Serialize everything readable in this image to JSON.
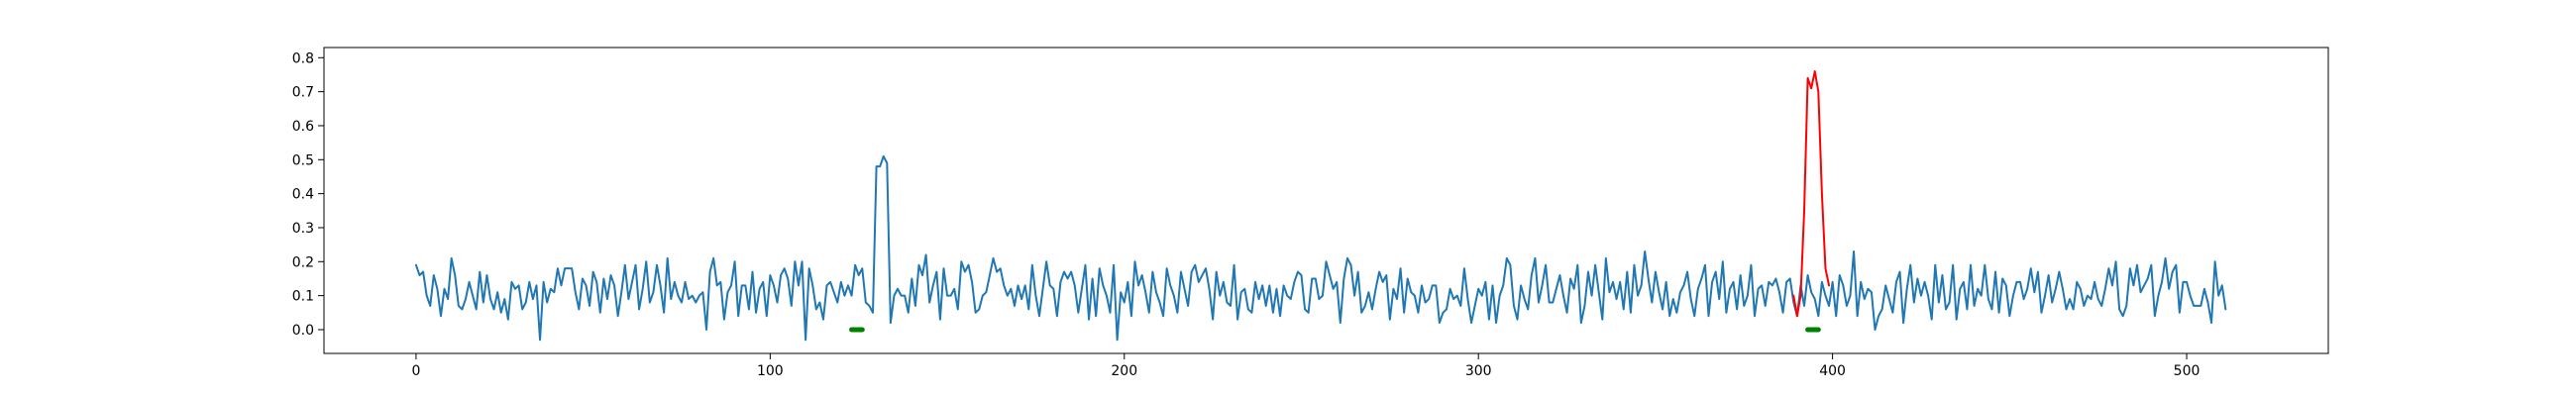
{
  "chart_data": {
    "type": "line",
    "title": "",
    "xlabel": "",
    "ylabel": "",
    "xlim": [
      -26,
      540
    ],
    "ylim": [
      -0.07,
      0.83
    ],
    "xticks": [
      0,
      100,
      200,
      300,
      400,
      500
    ],
    "xtick_labels": [
      "0",
      "100",
      "200",
      "300",
      "400",
      "500"
    ],
    "yticks": [
      0.0,
      0.1,
      0.2,
      0.3,
      0.4,
      0.5,
      0.6,
      0.7,
      0.8
    ],
    "ytick_labels": [
      "0.0",
      "0.1",
      "0.2",
      "0.3",
      "0.4",
      "0.5",
      "0.6",
      "0.7",
      "0.8"
    ],
    "grid": false,
    "legend": "none",
    "series": [
      {
        "role": "signal",
        "color": "#1f77b4",
        "x_start": 0,
        "values": [
          0.19,
          0.16,
          0.17,
          0.1,
          0.07,
          0.16,
          0.12,
          0.04,
          0.12,
          0.09,
          0.21,
          0.16,
          0.07,
          0.06,
          0.09,
          0.14,
          0.1,
          0.06,
          0.17,
          0.08,
          0.16,
          0.09,
          0.06,
          0.11,
          0.05,
          0.09,
          0.03,
          0.14,
          0.12,
          0.13,
          0.06,
          0.08,
          0.14,
          0.09,
          0.13,
          -0.03,
          0.14,
          0.08,
          0.12,
          0.11,
          0.18,
          0.13,
          0.18,
          0.18,
          0.18,
          0.11,
          0.06,
          0.15,
          0.13,
          0.07,
          0.17,
          0.14,
          0.05,
          0.15,
          0.09,
          0.16,
          0.13,
          0.04,
          0.11,
          0.19,
          0.09,
          0.14,
          0.19,
          0.06,
          0.12,
          0.2,
          0.08,
          0.11,
          0.19,
          0.13,
          0.05,
          0.21,
          0.09,
          0.14,
          0.1,
          0.08,
          0.14,
          0.09,
          0.1,
          0.08,
          0.1,
          0.11,
          0.0,
          0.17,
          0.21,
          0.13,
          0.14,
          0.03,
          0.11,
          0.13,
          0.2,
          0.04,
          0.13,
          0.13,
          0.06,
          0.17,
          0.05,
          0.12,
          0.14,
          0.04,
          0.16,
          0.13,
          0.08,
          0.16,
          0.18,
          0.15,
          0.07,
          0.2,
          0.13,
          0.2,
          -0.03,
          0.18,
          0.13,
          0.06,
          0.08,
          0.03,
          0.13,
          0.14,
          0.11,
          0.08,
          0.14,
          0.1,
          0.13,
          0.1,
          0.19,
          0.16,
          0.18,
          0.08,
          0.07,
          0.05,
          0.48,
          0.48,
          0.51,
          0.49,
          0.02,
          0.1,
          0.12,
          0.1,
          0.1,
          0.05,
          0.15,
          0.07,
          0.19,
          0.16,
          0.22,
          0.08,
          0.13,
          0.17,
          0.03,
          0.18,
          0.1,
          0.1,
          0.12,
          0.06,
          0.2,
          0.17,
          0.19,
          0.14,
          0.05,
          0.06,
          0.1,
          0.11,
          0.16,
          0.21,
          0.17,
          0.18,
          0.13,
          0.1,
          0.12,
          0.07,
          0.13,
          0.09,
          0.13,
          0.06,
          0.19,
          0.1,
          0.04,
          0.12,
          0.2,
          0.13,
          0.12,
          0.04,
          0.14,
          0.17,
          0.15,
          0.17,
          0.13,
          0.05,
          0.12,
          0.19,
          0.03,
          0.15,
          0.04,
          0.18,
          0.13,
          0.1,
          0.05,
          0.19,
          -0.03,
          0.11,
          0.08,
          0.14,
          0.04,
          0.2,
          0.13,
          0.16,
          0.11,
          0.05,
          0.17,
          0.11,
          0.08,
          0.04,
          0.18,
          0.13,
          0.1,
          0.05,
          0.17,
          0.12,
          0.07,
          0.17,
          0.19,
          0.14,
          0.16,
          0.18,
          0.12,
          0.03,
          0.17,
          0.1,
          0.14,
          0.08,
          0.07,
          0.19,
          0.03,
          0.11,
          0.12,
          0.06,
          0.05,
          0.14,
          0.09,
          0.13,
          0.07,
          0.13,
          0.05,
          0.12,
          0.04,
          0.13,
          0.1,
          0.09,
          0.14,
          0.17,
          0.16,
          0.06,
          0.05,
          0.15,
          0.15,
          0.09,
          0.1,
          0.2,
          0.16,
          0.12,
          0.14,
          0.02,
          0.15,
          0.21,
          0.19,
          0.1,
          0.17,
          0.05,
          0.07,
          0.11,
          0.06,
          0.12,
          0.17,
          0.14,
          0.16,
          0.03,
          0.12,
          0.09,
          0.18,
          0.05,
          0.15,
          0.11,
          0.1,
          0.05,
          0.13,
          0.08,
          0.09,
          0.13,
          0.13,
          0.02,
          0.05,
          0.06,
          0.12,
          0.09,
          0.1,
          0.07,
          0.18,
          0.09,
          0.02,
          0.07,
          0.12,
          0.1,
          0.14,
          0.03,
          0.13,
          0.02,
          0.1,
          0.13,
          0.21,
          0.19,
          0.07,
          0.03,
          0.13,
          0.09,
          0.06,
          0.16,
          0.21,
          0.08,
          0.13,
          0.19,
          0.08,
          0.08,
          0.12,
          0.16,
          0.1,
          0.05,
          0.15,
          0.12,
          0.19,
          0.02,
          0.07,
          0.17,
          0.1,
          0.19,
          0.11,
          0.03,
          0.21,
          0.11,
          0.14,
          0.09,
          0.14,
          0.06,
          0.17,
          0.05,
          0.19,
          0.1,
          0.13,
          0.23,
          0.15,
          0.08,
          0.17,
          0.11,
          0.06,
          0.14,
          0.04,
          0.09,
          0.05,
          0.11,
          0.13,
          0.17,
          0.09,
          0.04,
          0.12,
          0.15,
          0.19,
          0.04,
          0.14,
          0.17,
          0.09,
          0.2,
          0.05,
          0.12,
          0.14,
          0.06,
          0.16,
          0.07,
          0.1,
          0.19,
          0.04,
          0.12,
          0.13,
          0.07,
          0.14,
          0.13,
          0.15,
          0.11,
          0.05,
          0.14,
          0.15,
          0.08,
          0.04,
          0.13,
          0.07,
          0.16,
          0.11,
          0.09,
          0.04,
          0.14,
          0.1,
          0.07,
          0.14,
          0.04,
          0.16,
          0.13,
          0.07,
          0.1,
          0.23,
          0.04,
          0.14,
          0.09,
          0.12,
          0.11,
          0.0,
          0.04,
          0.06,
          0.13,
          0.09,
          0.05,
          0.14,
          0.17,
          0.02,
          0.12,
          0.19,
          0.08,
          0.15,
          0.1,
          0.14,
          0.1,
          0.03,
          0.19,
          0.08,
          0.16,
          0.06,
          0.08,
          0.19,
          0.03,
          0.12,
          0.14,
          0.06,
          0.19,
          0.07,
          0.12,
          0.1,
          0.19,
          0.09,
          0.06,
          0.17,
          0.05,
          0.15,
          0.13,
          0.04,
          0.1,
          0.14,
          0.14,
          0.09,
          0.12,
          0.18,
          0.11,
          0.17,
          0.05,
          0.1,
          0.16,
          0.08,
          0.12,
          0.17,
          0.12,
          0.06,
          0.09,
          0.06,
          0.14,
          0.12,
          0.07,
          0.1,
          0.09,
          0.14,
          0.09,
          0.07,
          0.12,
          0.18,
          0.13,
          0.2,
          0.06,
          0.04,
          0.07,
          0.18,
          0.13,
          0.19,
          0.11,
          0.13,
          0.15,
          0.19,
          0.04,
          0.1,
          0.14,
          0.21,
          0.12,
          0.17,
          0.19,
          0.05,
          0.14,
          0.14,
          0.1,
          0.07,
          0.07,
          0.07,
          0.12,
          0.08,
          0.02,
          0.2,
          0.1,
          0.13,
          0.06
        ]
      },
      {
        "role": "highlighted-anomaly",
        "color": "#ff0000",
        "x_start": 389,
        "values": [
          0.1,
          0.04,
          0.1,
          0.35,
          0.74,
          0.71,
          0.76,
          0.7,
          0.4,
          0.18,
          0.13
        ]
      }
    ],
    "markers": [
      {
        "role": "detected-range",
        "color": "#008000",
        "x_start": 123,
        "x_end": 126,
        "y": 0.0
      },
      {
        "role": "detected-range",
        "color": "#008000",
        "x_start": 393,
        "x_end": 396,
        "y": 0.0
      }
    ]
  }
}
